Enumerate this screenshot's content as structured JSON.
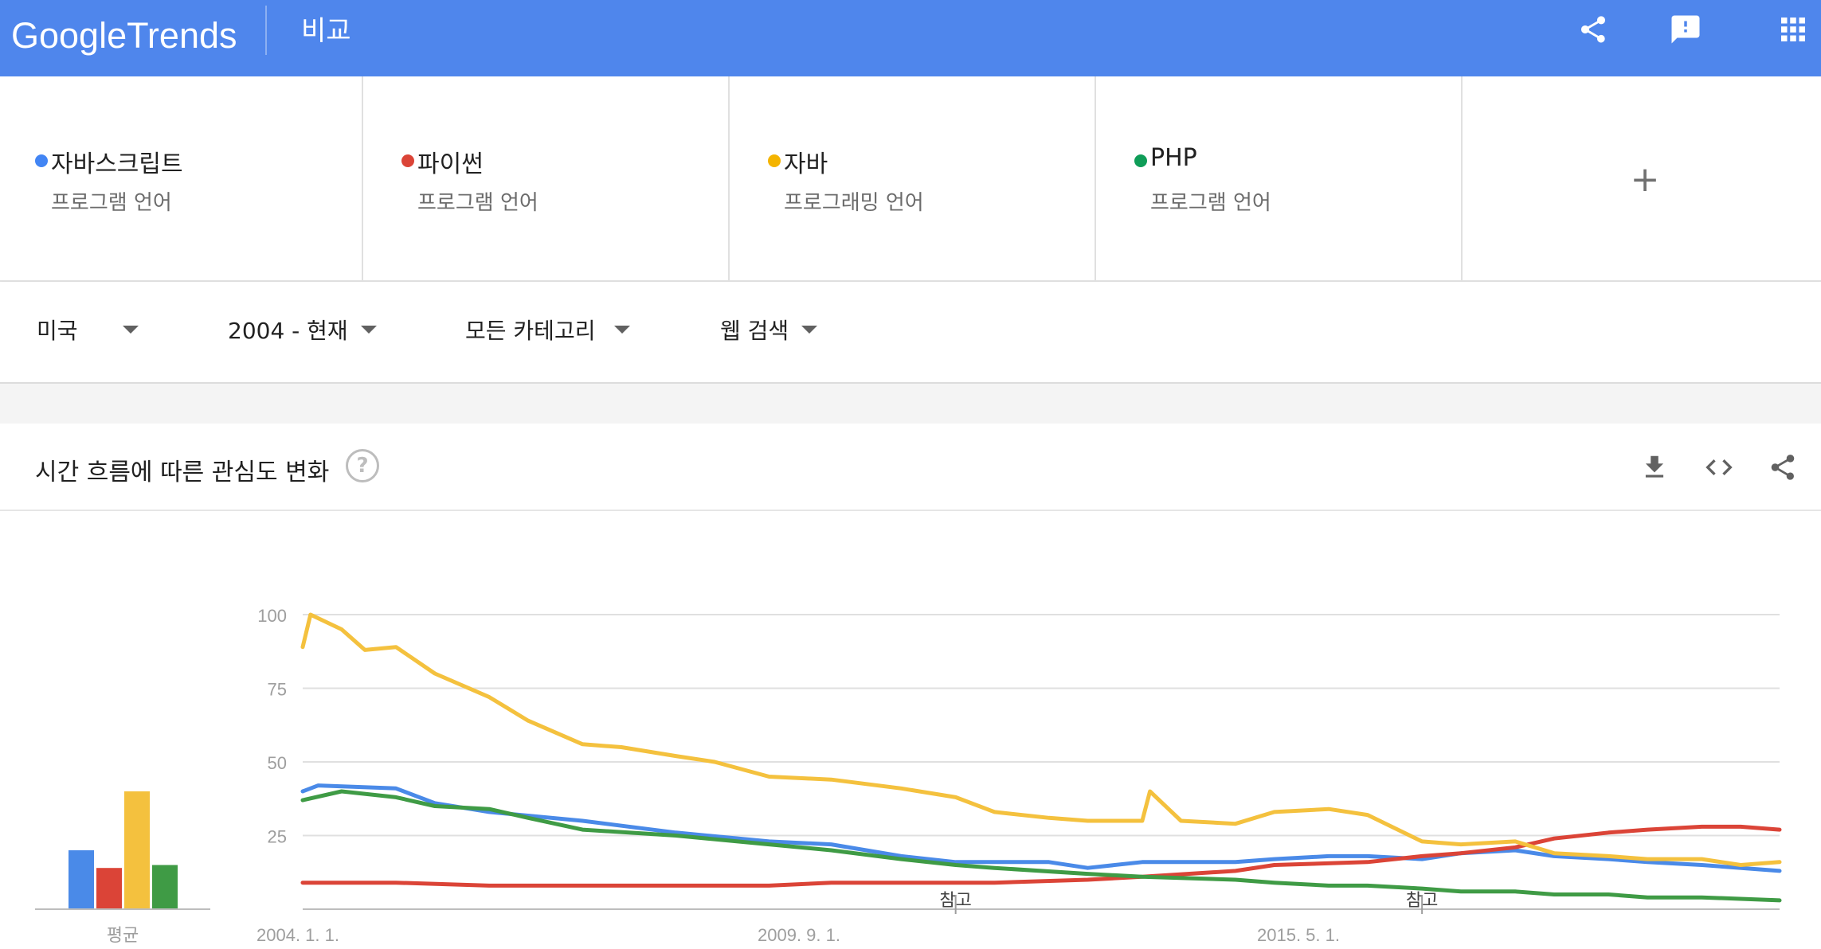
{
  "header": {
    "logo_google": "Google",
    "logo_trends": "Trends",
    "title": "비교",
    "icons": [
      "share-icon",
      "feedback-icon",
      "apps-icon"
    ]
  },
  "terms": [
    {
      "name": "자바스크립트",
      "sub": "프로그램 언어",
      "color": "#4285f4"
    },
    {
      "name": "파이썬",
      "sub": "프로그램 언어",
      "color": "#db4437"
    },
    {
      "name": "자바",
      "sub": "프로그래밍 언어",
      "color": "#f4b400"
    },
    {
      "name": "PHP",
      "sub": "프로그램 언어",
      "color": "#0f9d58"
    }
  ],
  "add_term_label": "+",
  "filters": {
    "region": "미국",
    "time": "2004 - 현재",
    "category": "모든 카테고리",
    "search_type": "웹 검색"
  },
  "card": {
    "title": "시간 흐름에 따른 관심도 변화",
    "help": "?"
  },
  "chart_data": {
    "type": "line",
    "x_labels": [
      "2004. 1. 1.",
      "2009. 9. 1.",
      "2015. 5. 1."
    ],
    "x_range": [
      "2004-01",
      "2019-11"
    ],
    "ylim": [
      0,
      100
    ],
    "yticks": [
      25,
      50,
      75,
      100
    ],
    "grid": true,
    "annotations": [
      {
        "label": "참고",
        "date": "2011-01"
      },
      {
        "label": "참고",
        "date": "2016-01"
      }
    ],
    "averages": [
      {
        "name": "자바스크립트",
        "value": 20
      },
      {
        "name": "파이썬",
        "value": 14
      },
      {
        "name": "자바",
        "value": 40
      },
      {
        "name": "PHP",
        "value": 15
      }
    ],
    "average_label": "평균",
    "series": [
      {
        "name": "자바스크립트",
        "color": "#4a8ae8",
        "points": [
          [
            "2004-01",
            40
          ],
          [
            "2004-03",
            42
          ],
          [
            "2005-01",
            41
          ],
          [
            "2005-06",
            36
          ],
          [
            "2006-01",
            33
          ],
          [
            "2007-01",
            30
          ],
          [
            "2008-01",
            26
          ],
          [
            "2009-01",
            23
          ],
          [
            "2009-09",
            22
          ],
          [
            "2010-06",
            18
          ],
          [
            "2011-01",
            16
          ],
          [
            "2012-01",
            16
          ],
          [
            "2012-06",
            14
          ],
          [
            "2013-01",
            16
          ],
          [
            "2014-01",
            16
          ],
          [
            "2014-06",
            17
          ],
          [
            "2015-01",
            18
          ],
          [
            "2015-06",
            18
          ],
          [
            "2016-01",
            17
          ],
          [
            "2016-06",
            19
          ],
          [
            "2017-01",
            20
          ],
          [
            "2017-06",
            18
          ],
          [
            "2018-01",
            17
          ],
          [
            "2018-06",
            16
          ],
          [
            "2019-01",
            15
          ],
          [
            "2019-11",
            13
          ]
        ]
      },
      {
        "name": "파이썬",
        "color": "#db4437",
        "points": [
          [
            "2004-01",
            9
          ],
          [
            "2005-01",
            9
          ],
          [
            "2006-01",
            8
          ],
          [
            "2007-01",
            8
          ],
          [
            "2008-01",
            8
          ],
          [
            "2009-01",
            8
          ],
          [
            "2009-09",
            9
          ],
          [
            "2010-06",
            9
          ],
          [
            "2011-01",
            9
          ],
          [
            "2011-06",
            9
          ],
          [
            "2012-06",
            10
          ],
          [
            "2013-01",
            11
          ],
          [
            "2014-01",
            13
          ],
          [
            "2014-06",
            15
          ],
          [
            "2015-06",
            16
          ],
          [
            "2016-01",
            18
          ],
          [
            "2016-06",
            19
          ],
          [
            "2017-01",
            21
          ],
          [
            "2017-06",
            24
          ],
          [
            "2018-01",
            26
          ],
          [
            "2018-06",
            27
          ],
          [
            "2019-01",
            28
          ],
          [
            "2019-06",
            28
          ],
          [
            "2019-11",
            27
          ]
        ]
      },
      {
        "name": "자바",
        "color": "#f4c13e",
        "points": [
          [
            "2004-01",
            89
          ],
          [
            "2004-02",
            100
          ],
          [
            "2004-06",
            95
          ],
          [
            "2004-09",
            88
          ],
          [
            "2005-01",
            89
          ],
          [
            "2005-06",
            80
          ],
          [
            "2006-01",
            72
          ],
          [
            "2006-06",
            64
          ],
          [
            "2007-01",
            56
          ],
          [
            "2007-06",
            55
          ],
          [
            "2008-01",
            52
          ],
          [
            "2008-06",
            50
          ],
          [
            "2009-01",
            45
          ],
          [
            "2009-09",
            44
          ],
          [
            "2010-06",
            41
          ],
          [
            "2011-01",
            38
          ],
          [
            "2011-06",
            33
          ],
          [
            "2012-01",
            31
          ],
          [
            "2012-06",
            30
          ],
          [
            "2013-01",
            30
          ],
          [
            "2013-02",
            40
          ],
          [
            "2013-06",
            30
          ],
          [
            "2014-01",
            29
          ],
          [
            "2014-06",
            33
          ],
          [
            "2015-01",
            34
          ],
          [
            "2015-06",
            32
          ],
          [
            "2016-01",
            23
          ],
          [
            "2016-06",
            22
          ],
          [
            "2017-01",
            23
          ],
          [
            "2017-06",
            19
          ],
          [
            "2018-01",
            18
          ],
          [
            "2018-06",
            17
          ],
          [
            "2019-01",
            17
          ],
          [
            "2019-06",
            15
          ],
          [
            "2019-11",
            16
          ]
        ]
      },
      {
        "name": "PHP",
        "color": "#3f9b45",
        "points": [
          [
            "2004-01",
            37
          ],
          [
            "2004-06",
            40
          ],
          [
            "2005-01",
            38
          ],
          [
            "2005-06",
            35
          ],
          [
            "2006-01",
            34
          ],
          [
            "2006-06",
            31
          ],
          [
            "2007-01",
            27
          ],
          [
            "2008-01",
            25
          ],
          [
            "2009-01",
            22
          ],
          [
            "2009-09",
            20
          ],
          [
            "2010-06",
            17
          ],
          [
            "2011-01",
            15
          ],
          [
            "2011-06",
            14
          ],
          [
            "2012-06",
            12
          ],
          [
            "2013-01",
            11
          ],
          [
            "2014-01",
            10
          ],
          [
            "2014-06",
            9
          ],
          [
            "2015-01",
            8
          ],
          [
            "2015-06",
            8
          ],
          [
            "2016-01",
            7
          ],
          [
            "2016-06",
            6
          ],
          [
            "2017-01",
            6
          ],
          [
            "2017-06",
            5
          ],
          [
            "2018-01",
            5
          ],
          [
            "2018-06",
            4
          ],
          [
            "2019-01",
            4
          ],
          [
            "2019-11",
            3
          ]
        ]
      }
    ]
  }
}
